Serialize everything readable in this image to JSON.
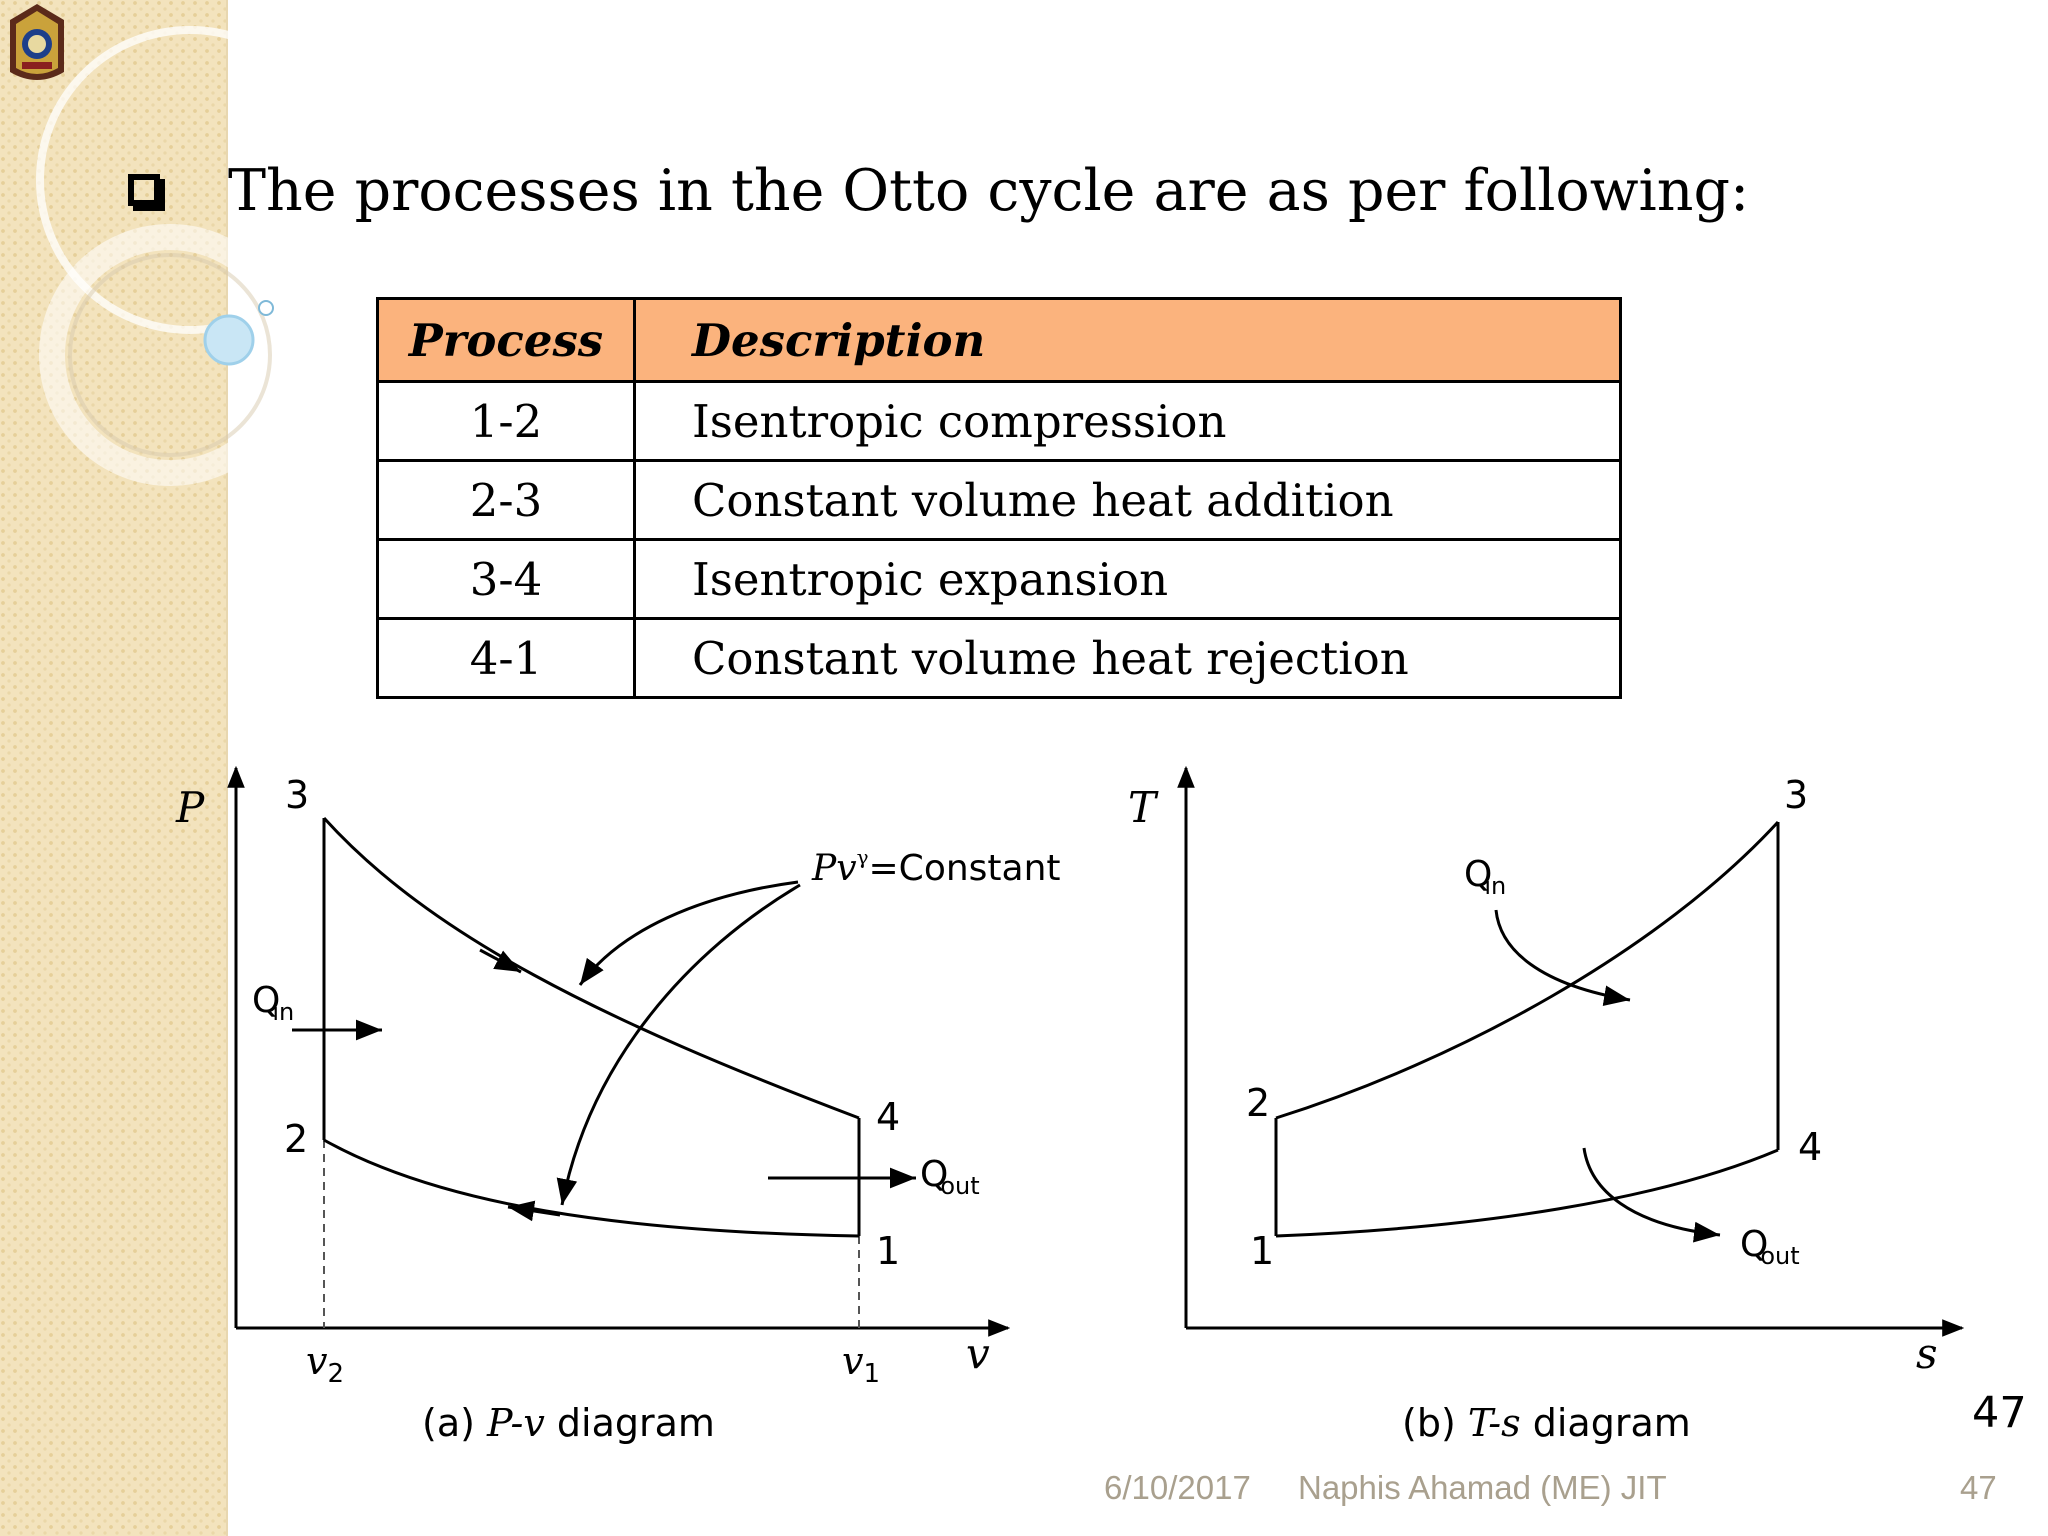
{
  "heading": "The processes in the Otto cycle are as per following:",
  "table": {
    "headers": [
      "Process",
      "Description"
    ],
    "rows": [
      {
        "process": "1-2",
        "description": "Isentropic compression"
      },
      {
        "process": "2-3",
        "description": "Constant volume heat addition"
      },
      {
        "process": "3-4",
        "description": "Isentropic expansion"
      },
      {
        "process": "4-1",
        "description": "Constant volume heat rejection"
      }
    ],
    "header_color": "#fbb37d"
  },
  "pv_diagram": {
    "y_axis": "P",
    "x_axis": "v",
    "points": {
      "p1": "1",
      "p2": "2",
      "p3": "3",
      "p4": "4"
    },
    "v2_base": "v",
    "v2_sub": "2",
    "v1_base": "v",
    "v1_sub": "1",
    "q_in": "Q",
    "q_in_sub": "in",
    "q_out": "Q",
    "q_out_sub": "out",
    "eq_pv": "Pv",
    "eq_gamma": "γ",
    "eq_rest": "=Constant",
    "caption_pre": "(a) ",
    "caption_var": "P-v",
    "caption_post": " diagram"
  },
  "ts_diagram": {
    "y_axis": "T",
    "x_axis": "s",
    "points": {
      "p1": "1",
      "p2": "2",
      "p3": "3",
      "p4": "4"
    },
    "q_in": "Q",
    "q_in_sub": "in",
    "q_out": "Q",
    "q_out_sub": "out",
    "caption_pre": "(b) ",
    "caption_var": "T-s",
    "caption_post": " diagram"
  },
  "slide_number": "47",
  "footer": {
    "date": "6/10/2017",
    "author": "Naphis Ahamad (ME) JIT",
    "page": "47"
  }
}
